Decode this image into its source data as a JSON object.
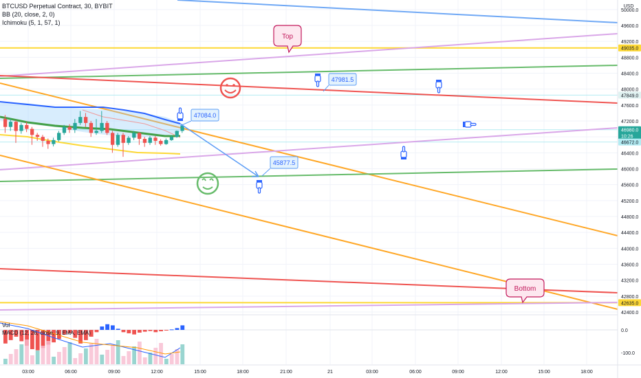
{
  "header": {
    "symbol_line": "BTCUSD Perpetual Contract, 30, BYBIT",
    "bb_line": "BB (20, close, 2, 0)",
    "ichimoku_line": "Ichimoku (5, 1, 57, 1)"
  },
  "macd_header": {
    "vol_label": "Vol",
    "macd_line": "MACD (12, 26, close, 9, EMA, EMA)"
  },
  "chart_data": {
    "type": "candlestick",
    "currency_label": "USD",
    "y_axis": {
      "ylim": [
        42400,
        50000
      ],
      "ticks": [
        50000,
        49600,
        49200,
        48800,
        48400,
        48000,
        47600,
        47200,
        46800,
        46400,
        46000,
        45600,
        45200,
        44800,
        44400,
        44000,
        43600,
        43200,
        42800,
        42400
      ],
      "tick_labels": [
        "50000.0",
        "49600.0",
        "49200.0",
        "48800.0",
        "48400.0",
        "48000.0",
        "47600.0",
        "47200.0",
        "46800.0",
        "46400.0",
        "46000.0",
        "45600.0",
        "45200.0",
        "44800.0",
        "44400.0",
        "44000.0",
        "43600.0",
        "43200.0",
        "42800.0",
        "42400.0"
      ]
    },
    "x_axis": {
      "ticks": [
        "03:00",
        "06:00",
        "09:00",
        "12:00",
        "15:00",
        "18:00",
        "21:00",
        "21",
        "03:00",
        "06:00",
        "09:00",
        "12:00",
        "15:00",
        "18:00"
      ]
    },
    "price_badges": [
      {
        "label": "49035.0",
        "value": 49035,
        "color": "#fdd835",
        "text_color": "#131722"
      },
      {
        "label": "47849.0",
        "value": 47849,
        "color": "#e0f2f1",
        "text_color": "#131722"
      },
      {
        "label": "46980.0",
        "value": 46980,
        "color": "#26a69a",
        "text_color": "#ffffff"
      },
      {
        "label": "10:26",
        "value": 46830,
        "color": "#26a69a",
        "text_color": "#ffffff"
      },
      {
        "label": "46672.0",
        "value": 46672,
        "color": "#b2ebf2",
        "text_color": "#131722"
      },
      {
        "label": "42635.0",
        "value": 42635,
        "color": "#fdd835",
        "text_color": "#131722"
      }
    ],
    "annotations": {
      "callouts": [
        "47084.0",
        "47981.5",
        "45877.5"
      ],
      "labels": [
        "Top",
        "Bottom"
      ]
    },
    "candles": [
      {
        "o": 47250,
        "c": 47050,
        "h": 47350,
        "l": 46900
      },
      {
        "o": 47050,
        "c": 47180,
        "h": 47260,
        "l": 46950
      },
      {
        "o": 47180,
        "c": 46950,
        "h": 47220,
        "l": 46650
      },
      {
        "o": 46950,
        "c": 47100,
        "h": 47150,
        "l": 46880
      },
      {
        "o": 47100,
        "c": 47000,
        "h": 47180,
        "l": 46920
      },
      {
        "o": 47000,
        "c": 46850,
        "h": 47050,
        "l": 46600
      },
      {
        "o": 46850,
        "c": 46800,
        "h": 46900,
        "l": 46700
      },
      {
        "o": 46800,
        "c": 46700,
        "h": 46850,
        "l": 46550
      },
      {
        "o": 46700,
        "c": 46620,
        "h": 46760,
        "l": 46500
      },
      {
        "o": 46620,
        "c": 46720,
        "h": 46780,
        "l": 46560
      },
      {
        "o": 46720,
        "c": 46900,
        "h": 46950,
        "l": 46680
      },
      {
        "o": 46900,
        "c": 47050,
        "h": 47100,
        "l": 46850
      },
      {
        "o": 47050,
        "c": 46980,
        "h": 47120,
        "l": 46900
      },
      {
        "o": 46980,
        "c": 47150,
        "h": 47250,
        "l": 46900
      },
      {
        "o": 47150,
        "c": 47300,
        "h": 47450,
        "l": 47100
      },
      {
        "o": 47300,
        "c": 47150,
        "h": 47400,
        "l": 47050
      },
      {
        "o": 47150,
        "c": 46900,
        "h": 47200,
        "l": 46800
      },
      {
        "o": 46900,
        "c": 46950,
        "h": 47250,
        "l": 46850
      },
      {
        "o": 46950,
        "c": 47150,
        "h": 47450,
        "l": 46900
      },
      {
        "o": 47150,
        "c": 46900,
        "h": 47200,
        "l": 46850
      },
      {
        "o": 46900,
        "c": 46600,
        "h": 46950,
        "l": 46400
      },
      {
        "o": 46600,
        "c": 46850,
        "h": 46900,
        "l": 46550
      },
      {
        "o": 46850,
        "c": 46650,
        "h": 46900,
        "l": 46300
      },
      {
        "o": 46650,
        "c": 46780,
        "h": 46820,
        "l": 46600
      },
      {
        "o": 46780,
        "c": 46900,
        "h": 46950,
        "l": 46720
      },
      {
        "o": 46900,
        "c": 46750,
        "h": 46920,
        "l": 46600
      },
      {
        "o": 46750,
        "c": 46650,
        "h": 46800,
        "l": 46550
      },
      {
        "o": 46650,
        "c": 46780,
        "h": 46820,
        "l": 46600
      },
      {
        "o": 46780,
        "c": 46700,
        "h": 46820,
        "l": 46600
      },
      {
        "o": 46700,
        "c": 46620,
        "h": 46740,
        "l": 46580
      },
      {
        "o": 46620,
        "c": 46720,
        "h": 46760,
        "l": 46600
      },
      {
        "o": 46720,
        "c": 46800,
        "h": 46850,
        "l": 46700
      },
      {
        "o": 46800,
        "c": 46950,
        "h": 46960,
        "l": 46780
      },
      {
        "o": 46950,
        "c": 47080,
        "h": 47120,
        "l": 46900
      }
    ],
    "macd": {
      "ylim": [
        -150,
        50
      ],
      "tick_labels": [
        "0.0",
        "-100.0"
      ],
      "ticks": [
        0,
        -100
      ],
      "histogram": [
        -60,
        -45,
        -30,
        -50,
        -70,
        -85,
        -90,
        -80,
        -65,
        -55,
        -40,
        -20,
        -15,
        -35,
        -60,
        -45,
        -30,
        -10,
        15,
        25,
        20,
        5,
        -10,
        -15,
        -20,
        -12,
        -8,
        -5,
        -10,
        -6,
        -2,
        2,
        8,
        20
      ]
    }
  }
}
